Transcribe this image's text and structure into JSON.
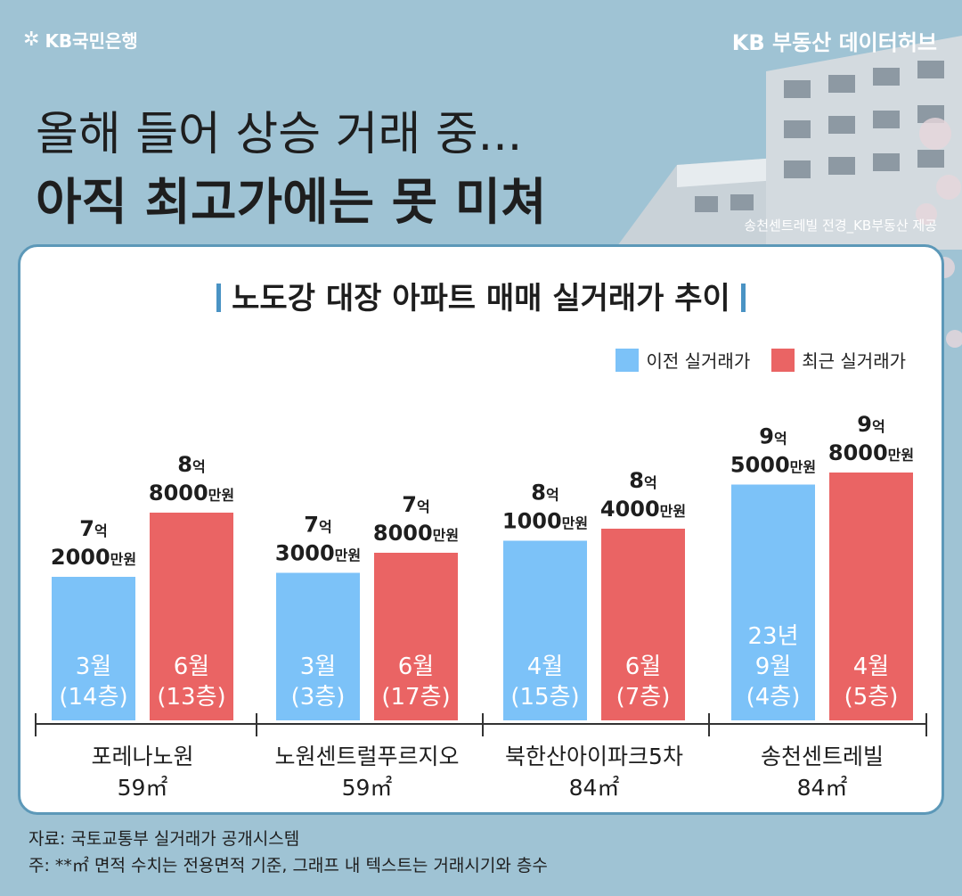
{
  "brand": {
    "bank_logo_text": "KB국민은행",
    "hub_logo_text": "KB 부동산 데이터허브"
  },
  "headline": {
    "line1": "올해 들어 상승 거래 중...",
    "line2": "아직 최고가에는 못 미쳐"
  },
  "photo_caption": "송천센트레빌 전경_KB부동산 제공",
  "footer": {
    "source": "자료: 국토교통부 실거래가 공개시스템",
    "note": "주: **㎡ 면적 수치는 전용면적 기준, 그래프 내 텍스트는 거래시기와 층수"
  },
  "colors": {
    "previous": "#7cc2f8",
    "recent": "#ea6464",
    "background": "#9fc3d4"
  },
  "chart_data": {
    "type": "bar",
    "title": "노도강 대장 아파트 매매 실거래가 추이",
    "unit": "만원",
    "legend": [
      "이전 실거래가",
      "최근 실거래가"
    ],
    "legend_position": "top-right",
    "grid": false,
    "categories": [
      {
        "name": "포레나노원",
        "area": "59㎡"
      },
      {
        "name": "노원센트럴푸르지오",
        "area": "59㎡"
      },
      {
        "name": "북한산아이파크5차",
        "area": "84㎡"
      },
      {
        "name": "송천센트레빌",
        "area": "84㎡"
      }
    ],
    "series": [
      {
        "name": "이전 실거래가",
        "values": [
          72000,
          73000,
          81000,
          95000
        ],
        "value_labels": [
          {
            "eok": "7",
            "man": "2000"
          },
          {
            "eok": "7",
            "man": "3000"
          },
          {
            "eok": "8",
            "man": "1000"
          },
          {
            "eok": "9",
            "man": "5000"
          }
        ],
        "bar_labels": [
          [
            "3월",
            "(14층)"
          ],
          [
            "3월",
            "(3층)"
          ],
          [
            "4월",
            "(15층)"
          ],
          [
            "23년",
            "9월",
            "(4층)"
          ]
        ]
      },
      {
        "name": "최근 실거래가",
        "values": [
          88000,
          78000,
          84000,
          98000
        ],
        "value_labels": [
          {
            "eok": "8",
            "man": "8000"
          },
          {
            "eok": "7",
            "man": "8000"
          },
          {
            "eok": "8",
            "man": "4000"
          },
          {
            "eok": "9",
            "man": "8000"
          }
        ],
        "bar_labels": [
          [
            "6월",
            "(13층)"
          ],
          [
            "6월",
            "(17층)"
          ],
          [
            "6월",
            "(7층)"
          ],
          [
            "4월",
            "(5층)"
          ]
        ]
      }
    ],
    "label_suffix_eok": "억",
    "label_suffix_man": "만원"
  }
}
